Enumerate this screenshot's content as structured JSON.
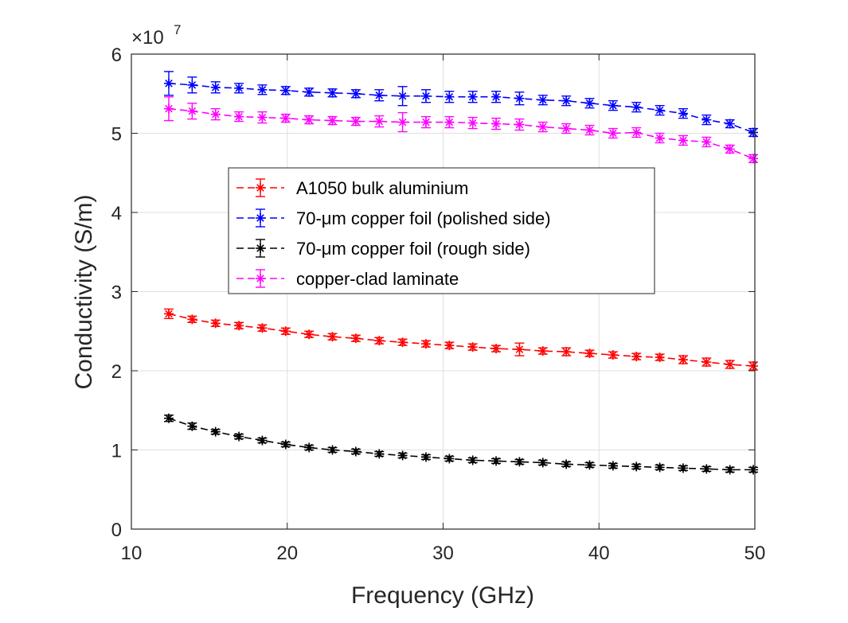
{
  "chart_data": {
    "type": "line",
    "xlabel": "Frequency (GHz)",
    "ylabel": "Conductivity (S/m)",
    "y_multiplier": "×10",
    "y_multiplier_exp": "7",
    "xlim": [
      10,
      50
    ],
    "ylim": [
      0,
      6
    ],
    "xticks": [
      "10",
      "20",
      "30",
      "40",
      "50"
    ],
    "yticks": [
      "0",
      "1",
      "2",
      "3",
      "4",
      "5",
      "6"
    ],
    "grid": true,
    "legend_position": "center-left",
    "x": [
      12.4,
      13.9,
      15.4,
      16.9,
      18.4,
      19.9,
      21.4,
      22.9,
      24.4,
      25.9,
      27.4,
      28.9,
      30.4,
      31.9,
      33.4,
      34.9,
      36.4,
      37.9,
      39.4,
      40.9,
      42.4,
      43.9,
      45.4,
      46.9,
      48.4,
      49.9
    ],
    "series": [
      {
        "name": "A1050 bulk aluminium",
        "color": "#ff0000",
        "values": [
          2.72,
          2.65,
          2.6,
          2.57,
          2.54,
          2.5,
          2.46,
          2.43,
          2.41,
          2.38,
          2.36,
          2.34,
          2.32,
          2.3,
          2.28,
          2.27,
          2.25,
          2.24,
          2.22,
          2.2,
          2.18,
          2.17,
          2.14,
          2.11,
          2.08,
          2.06
        ],
        "errors": [
          0.06,
          0.04,
          0.04,
          0.04,
          0.04,
          0.04,
          0.04,
          0.04,
          0.04,
          0.04,
          0.04,
          0.04,
          0.04,
          0.04,
          0.04,
          0.08,
          0.04,
          0.05,
          0.04,
          0.04,
          0.04,
          0.04,
          0.05,
          0.05,
          0.05,
          0.05
        ]
      },
      {
        "name": "70-μm copper foil (polished side)",
        "color": "#0000ff",
        "values": [
          5.63,
          5.61,
          5.58,
          5.57,
          5.55,
          5.54,
          5.52,
          5.51,
          5.5,
          5.48,
          5.47,
          5.47,
          5.46,
          5.46,
          5.46,
          5.44,
          5.42,
          5.41,
          5.38,
          5.35,
          5.33,
          5.29,
          5.25,
          5.17,
          5.12,
          5.01
        ],
        "errors": [
          0.15,
          0.1,
          0.07,
          0.06,
          0.06,
          0.05,
          0.05,
          0.05,
          0.05,
          0.07,
          0.12,
          0.08,
          0.07,
          0.07,
          0.07,
          0.08,
          0.06,
          0.06,
          0.06,
          0.06,
          0.06,
          0.06,
          0.06,
          0.06,
          0.05,
          0.05
        ]
      },
      {
        "name": "70-μm copper foil (rough side)",
        "color": "#000000",
        "values": [
          1.4,
          1.3,
          1.23,
          1.17,
          1.12,
          1.07,
          1.03,
          1.0,
          0.98,
          0.95,
          0.93,
          0.91,
          0.89,
          0.87,
          0.86,
          0.85,
          0.84,
          0.82,
          0.81,
          0.8,
          0.79,
          0.78,
          0.77,
          0.76,
          0.75,
          0.75
        ],
        "errors": [
          0.04,
          0.04,
          0.03,
          0.03,
          0.03,
          0.03,
          0.03,
          0.03,
          0.03,
          0.03,
          0.03,
          0.03,
          0.03,
          0.03,
          0.03,
          0.03,
          0.03,
          0.03,
          0.03,
          0.03,
          0.03,
          0.03,
          0.03,
          0.03,
          0.03,
          0.03
        ]
      },
      {
        "name": "copper-clad laminate",
        "color": "#ff00ff",
        "values": [
          5.31,
          5.28,
          5.24,
          5.21,
          5.2,
          5.19,
          5.17,
          5.16,
          5.15,
          5.15,
          5.14,
          5.14,
          5.14,
          5.13,
          5.12,
          5.11,
          5.08,
          5.06,
          5.04,
          5.0,
          5.01,
          4.94,
          4.91,
          4.89,
          4.8,
          4.68
        ],
        "errors": [
          0.15,
          0.1,
          0.07,
          0.06,
          0.07,
          0.05,
          0.05,
          0.05,
          0.05,
          0.07,
          0.12,
          0.07,
          0.07,
          0.07,
          0.07,
          0.07,
          0.06,
          0.06,
          0.06,
          0.06,
          0.06,
          0.06,
          0.06,
          0.06,
          0.05,
          0.05
        ]
      }
    ]
  }
}
